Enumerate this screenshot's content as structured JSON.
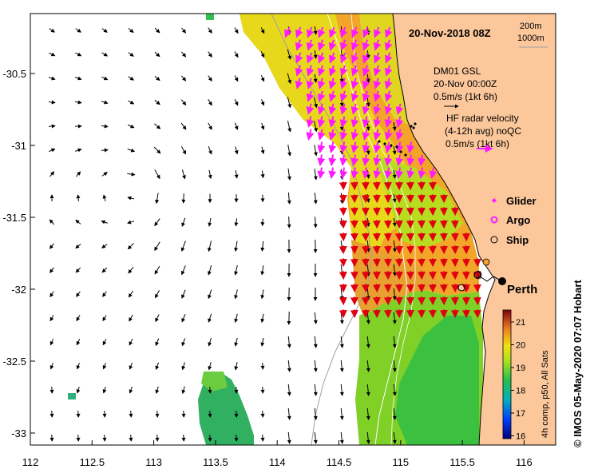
{
  "title": "20-Nov-2018 08Z",
  "contours": {
    "c1": "200m",
    "c2": "1000m"
  },
  "dm01": {
    "line1": "DM01 GSL",
    "line2": "20-Nov 00:00Z",
    "line3": "0.5m/s (1kt 6h)"
  },
  "hf": {
    "line1": "HF radar velocity",
    "line2": "(4-12h avg) noQC",
    "line3": "0.5m/s (1kt 6h)"
  },
  "legend": {
    "glider": "Glider",
    "argo": "Argo",
    "ship": "Ship"
  },
  "place": "Perth",
  "colorbar": {
    "label": "4h comp, p50, All Sats",
    "ticks": [
      "21",
      "20",
      "19",
      "18",
      "17",
      "16"
    ]
  },
  "credit": "© IMOS 05-May-2020 07:07 Hobart",
  "axes": {
    "x_ticks": [
      "112",
      "112.5",
      "113",
      "113.5",
      "114",
      "114.5",
      "115",
      "115.5",
      "116"
    ],
    "y_ticks": [
      "-30.5",
      "-31",
      "-31.5",
      "-32",
      "-32.5",
      "-33"
    ]
  },
  "colors": {
    "land": "#fbc79b",
    "hf_arrow": "#ff1aff",
    "model_arrow": "#000000",
    "glider": "#ff1aff",
    "ship": "#000000"
  }
}
